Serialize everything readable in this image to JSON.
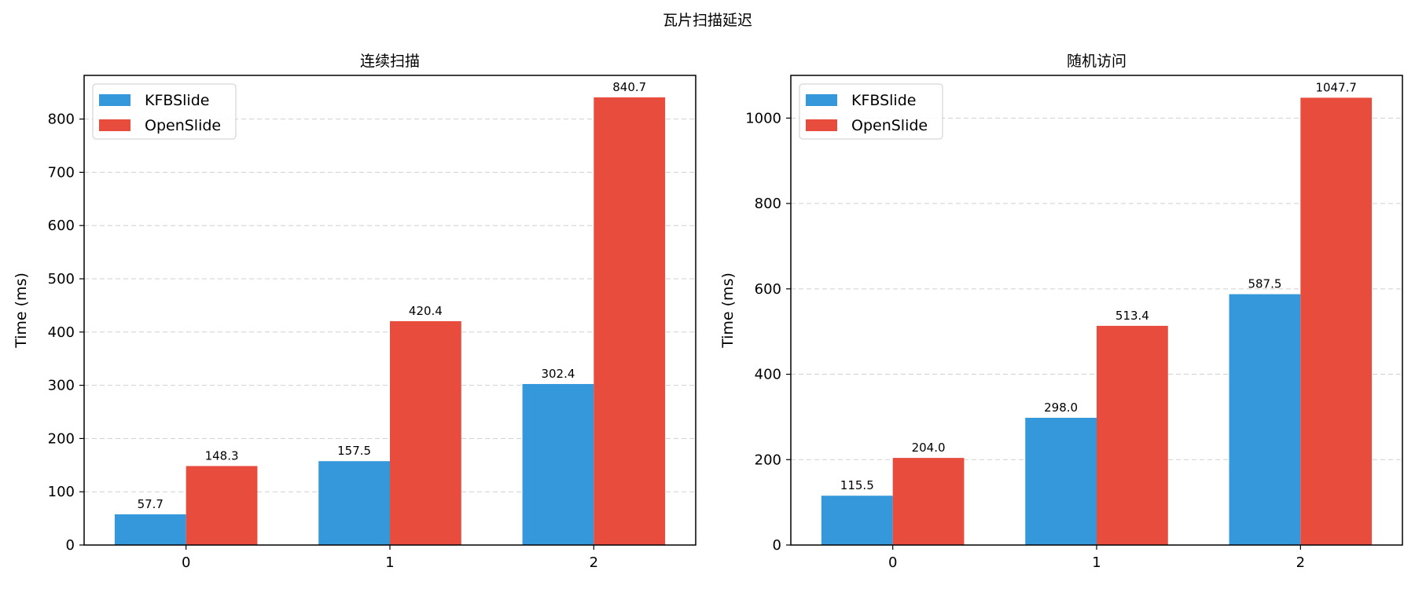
{
  "figure": {
    "title": "瓦片扫描延迟"
  },
  "chart_data": [
    {
      "type": "bar",
      "title": "连续扫描",
      "xlabel": "",
      "ylabel": "Time (ms)",
      "categories": [
        "0",
        "1",
        "2"
      ],
      "ylim": [
        0,
        882
      ],
      "yticks": [
        0,
        100,
        200,
        300,
        400,
        500,
        600,
        700,
        800
      ],
      "grid": "y-dashed",
      "legend": "upper-left",
      "series": [
        {
          "name": "KFBSlide",
          "values": [
            57.7,
            157.5,
            302.4
          ],
          "color": "#3498db"
        },
        {
          "name": "OpenSlide",
          "values": [
            148.3,
            420.4,
            840.7
          ],
          "color": "#e74c3c"
        }
      ],
      "data_labels": [
        [
          "57.7",
          "157.5",
          "302.4"
        ],
        [
          "148.3",
          "420.4",
          "840.7"
        ]
      ]
    },
    {
      "type": "bar",
      "title": "随机访问",
      "xlabel": "",
      "ylabel": "Time (ms)",
      "categories": [
        "0",
        "1",
        "2"
      ],
      "ylim": [
        0,
        1100
      ],
      "yticks": [
        0,
        200,
        400,
        600,
        800,
        1000
      ],
      "grid": "y-dashed",
      "legend": "upper-left",
      "series": [
        {
          "name": "KFBSlide",
          "values": [
            115.5,
            298.0,
            587.5
          ],
          "color": "#3498db"
        },
        {
          "name": "OpenSlide",
          "values": [
            204.0,
            513.4,
            1047.7
          ],
          "color": "#e74c3c"
        }
      ],
      "data_labels": [
        [
          "115.5",
          "298.0",
          "587.5"
        ],
        [
          "204.0",
          "513.4",
          "1047.7"
        ]
      ]
    }
  ]
}
